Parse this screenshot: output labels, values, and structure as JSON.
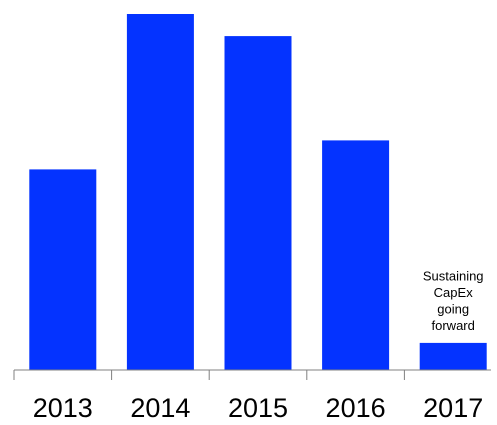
{
  "chart_data": {
    "type": "bar",
    "categories": [
      "2013",
      "2014",
      "2015",
      "2016",
      "2017"
    ],
    "values": [
      200,
      355,
      333,
      229,
      27
    ],
    "ylim": [
      0,
      355
    ],
    "title": "",
    "xlabel": "",
    "ylabel": "",
    "bar_color": "#0433ff",
    "axis_color": "#808080",
    "grid": false,
    "annotations": [
      {
        "category": "2017",
        "lines": [
          "Sustaining",
          "CapEx",
          "going",
          "forward"
        ]
      }
    ]
  }
}
